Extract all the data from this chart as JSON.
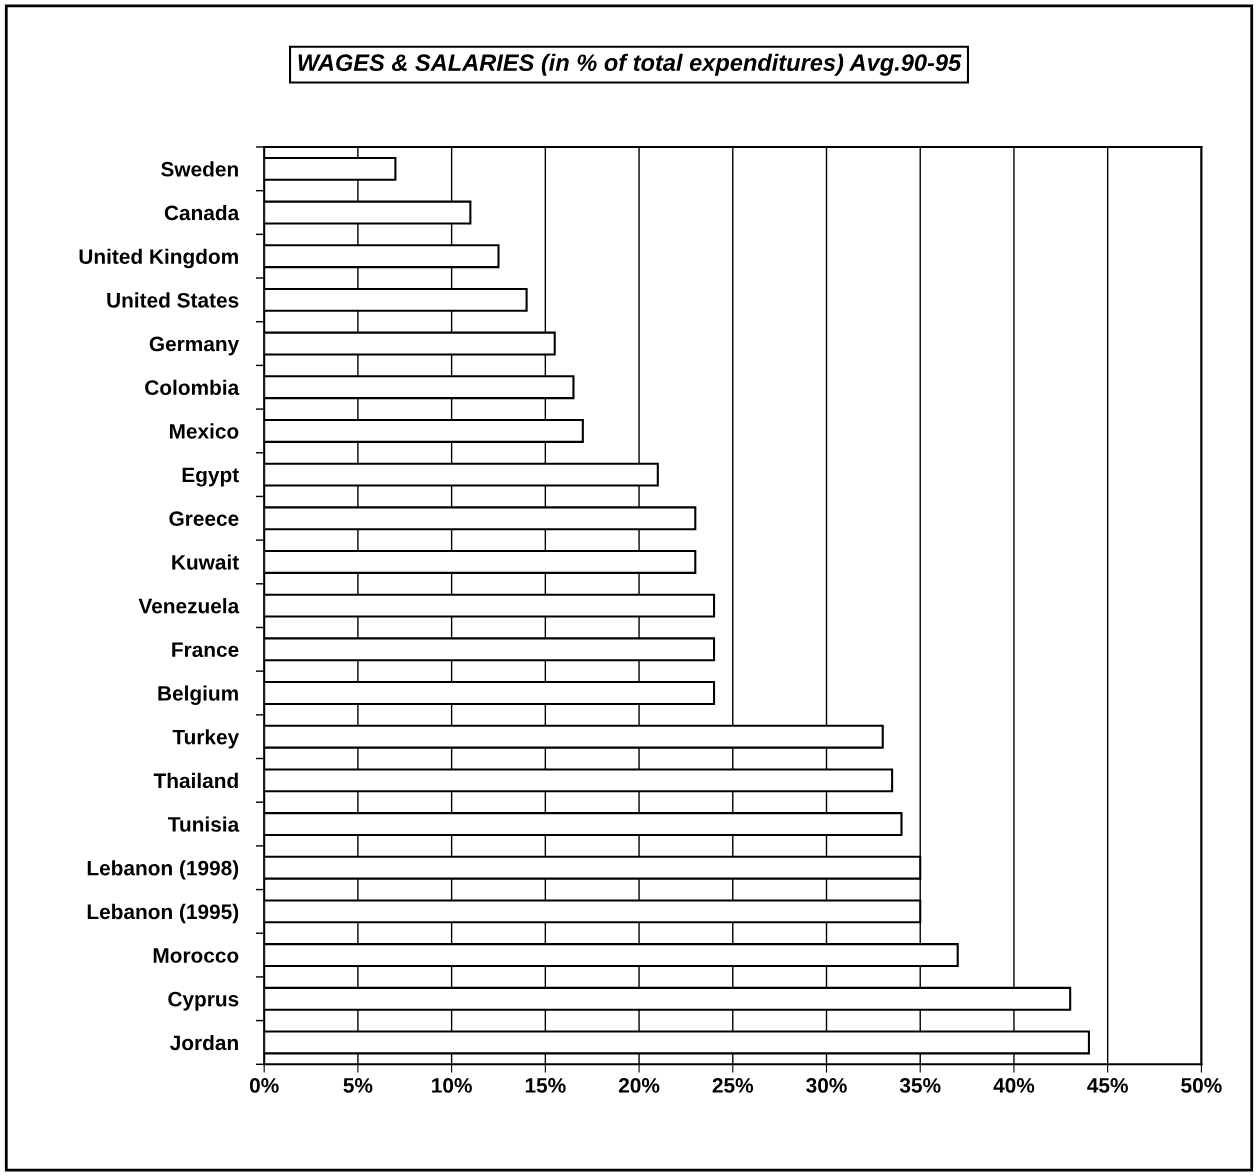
{
  "chart_data": {
    "type": "bar",
    "orientation": "horizontal",
    "title": "WAGES & SALARIES (in % of total expenditures) Avg.90-95",
    "categories": [
      "Sweden",
      "Canada",
      "United Kingdom",
      "United States",
      "Germany",
      "Colombia",
      "Mexico",
      "Egypt",
      "Greece",
      "Kuwait",
      "Venezuela",
      "France",
      "Belgium",
      "Turkey",
      "Thailand",
      "Tunisia",
      "Lebanon (1998)",
      "Lebanon (1995)",
      "Morocco",
      "Cyprus",
      "Jordan"
    ],
    "values": [
      7,
      11,
      12.5,
      14,
      15.5,
      16.5,
      17,
      21,
      23,
      23,
      24,
      24,
      24,
      33,
      33.5,
      34,
      35,
      35,
      37,
      43,
      44
    ],
    "color": "#ffffff",
    "xlim": [
      0,
      50
    ],
    "xticks": [
      {
        "value": 0,
        "label": "0%"
      },
      {
        "value": 5,
        "label": "5%"
      },
      {
        "value": 10,
        "label": "10%"
      },
      {
        "value": 15,
        "label": "15%"
      },
      {
        "value": 20,
        "label": "20%"
      },
      {
        "value": 25,
        "label": "25%"
      },
      {
        "value": 30,
        "label": "30%"
      },
      {
        "value": 35,
        "label": "35%"
      },
      {
        "value": 40,
        "label": "40%"
      },
      {
        "value": 45,
        "label": "45%"
      },
      {
        "value": 50,
        "label": "50%"
      }
    ],
    "grid": "x"
  }
}
